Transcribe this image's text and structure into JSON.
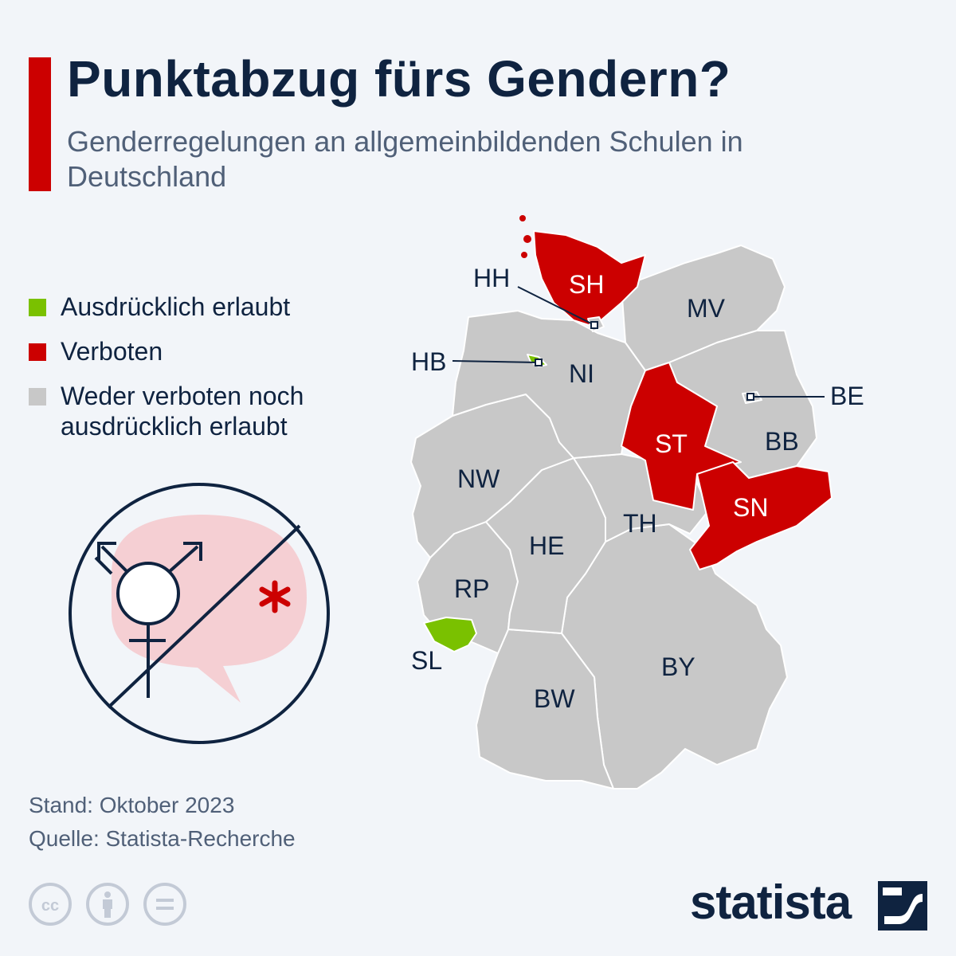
{
  "header": {
    "title": "Punktabzug fürs Gendern?",
    "subtitle": "Genderregelungen an allgemeinbildenden Schulen in Deutschland"
  },
  "legend": [
    {
      "label": "Ausdrücklich erlaubt",
      "color": "#7ac100"
    },
    {
      "label": "Verboten",
      "color": "#cc0000"
    },
    {
      "label": "Weder verboten noch ausdrücklich erlaubt",
      "color": "#c8c8c8"
    }
  ],
  "map": {
    "states": [
      {
        "code": "SH",
        "status": "Verboten"
      },
      {
        "code": "HH",
        "status": "Weder verboten noch ausdrücklich erlaubt"
      },
      {
        "code": "MV",
        "status": "Weder verboten noch ausdrücklich erlaubt"
      },
      {
        "code": "HB",
        "status": "Ausdrücklich erlaubt"
      },
      {
        "code": "NI",
        "status": "Weder verboten noch ausdrücklich erlaubt"
      },
      {
        "code": "BE",
        "status": "Weder verboten noch ausdrücklich erlaubt"
      },
      {
        "code": "ST",
        "status": "Verboten"
      },
      {
        "code": "BB",
        "status": "Weder verboten noch ausdrücklich erlaubt"
      },
      {
        "code": "NW",
        "status": "Weder verboten noch ausdrücklich erlaubt"
      },
      {
        "code": "SN",
        "status": "Verboten"
      },
      {
        "code": "TH",
        "status": "Weder verboten noch ausdrücklich erlaubt"
      },
      {
        "code": "HE",
        "status": "Weder verboten noch ausdrücklich erlaubt"
      },
      {
        "code": "RP",
        "status": "Weder verboten noch ausdrücklich erlaubt"
      },
      {
        "code": "SL",
        "status": "Ausdrücklich erlaubt"
      },
      {
        "code": "BY",
        "status": "Weder verboten noch ausdrücklich erlaubt"
      },
      {
        "code": "BW",
        "status": "Weder verboten noch ausdrücklich erlaubt"
      }
    ]
  },
  "footer": {
    "stand": "Stand: Oktober 2023",
    "quelle": "Quelle: Statista-Recherche"
  },
  "brand": {
    "name": "statista"
  },
  "icons": [
    "cc-icon",
    "attribution-icon",
    "no-derivatives-icon",
    "no-gender-language-icon",
    "statista-logo-icon"
  ]
}
